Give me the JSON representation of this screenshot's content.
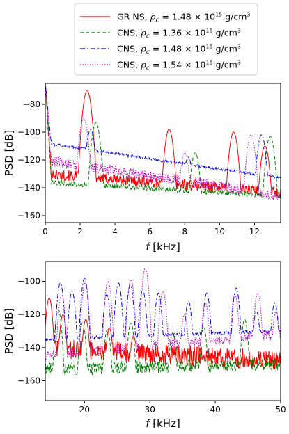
{
  "chart_data": {
    "legend": {
      "placement": "top-center",
      "entries": [
        {
          "label": "GR NS, ",
          "rho_symbol": "ρ",
          "rho_sub": "c",
          "rho_value": " = 1.48 × 10",
          "exponent": "15",
          "unit": " g/cm",
          "unit_exp": "3",
          "color": "#ff0000",
          "dash": "solid"
        },
        {
          "label": "CNS, ",
          "rho_symbol": "ρ",
          "rho_sub": "c",
          "rho_value": " = 1.36 × 10",
          "exponent": "15",
          "unit": " g/cm",
          "unit_exp": "3",
          "color": "#008000",
          "dash": "dashed"
        },
        {
          "label": "CNS, ",
          "rho_symbol": "ρ",
          "rho_sub": "c",
          "rho_value": " = 1.48 × 10",
          "exponent": "15",
          "unit": " g/cm",
          "unit_exp": "3",
          "color": "#0000ff",
          "dash": "dashdot"
        },
        {
          "label": "CNS, ",
          "rho_symbol": "ρ",
          "rho_sub": "c",
          "rho_value": " = 1.54 × 10",
          "exponent": "15",
          "unit": " g/cm",
          "unit_exp": "3",
          "color": "#bf00bf",
          "dash": "dotted"
        }
      ]
    },
    "panels": [
      {
        "type": "line",
        "xlabel_sym": "f",
        "xlabel_unit": " [kHz]",
        "ylabel": "PSD [dB]",
        "xlim": [
          0,
          13.5
        ],
        "ylim": [
          -165,
          -65
        ],
        "xticks": [
          0,
          2,
          4,
          6,
          8,
          10,
          12
        ],
        "yticks": [
          -160,
          -140,
          -120,
          -100,
          -80
        ],
        "series": [
          {
            "name": "GR NS",
            "color": "#ff0000",
            "peaks": [
              [
                2.4,
                -70
              ],
              [
                7.1,
                -98
              ],
              [
                10.8,
                -100
              ],
              [
                12.6,
                -110
              ]
            ],
            "floor_start": -130,
            "floor_end": -143,
            "noise": 4
          },
          {
            "name": "CNS 1.36",
            "color": "#008000",
            "peaks": [
              [
                2.9,
                -93
              ],
              [
                8.6,
                -115
              ],
              [
                12.9,
                -103
              ]
            ],
            "floor_start": -136,
            "floor_end": -146,
            "noise": 2
          },
          {
            "name": "CNS 1.48",
            "color": "#0000ff",
            "peaks": [
              [
                2.6,
                -98
              ],
              [
                8.2,
                -118
              ],
              [
                12.4,
                -102
              ]
            ],
            "floor_start": -108,
            "floor_end": -133,
            "noise": 1
          },
          {
            "name": "CNS 1.54",
            "color": "#bf00bf",
            "peaks": [
              [
                2.2,
                -90
              ],
              [
                8.0,
                -115
              ],
              [
                11.8,
                -102
              ]
            ],
            "floor_start": -120,
            "floor_end": -146,
            "noise": 4
          }
        ]
      },
      {
        "type": "line",
        "xlabel_sym": "f",
        "xlabel_unit": " [kHz]",
        "ylabel": "PSD [dB]",
        "xlim": [
          14,
          50
        ],
        "ylim": [
          -172,
          -88
        ],
        "xticks": [
          20,
          30,
          40,
          50
        ],
        "yticks": [
          -160,
          -140,
          -120,
          -100
        ],
        "series": [
          {
            "name": "GR NS",
            "color": "#ff0000",
            "peaks": [
              [
                14.6,
                -110
              ],
              [
                16.7,
                -120
              ],
              [
                20.2,
                -123
              ],
              [
                23.8,
                -128
              ],
              [
                27.5,
                -133
              ]
            ],
            "floor_start": -140,
            "floor_end": -148,
            "noise": 6
          },
          {
            "name": "CNS 1.36",
            "color": "#008000",
            "peaks": [
              [
                16.0,
                -117
              ],
              [
                19.7,
                -125
              ],
              [
                23.5,
                -129
              ],
              [
                27.1,
                -125
              ],
              [
                33.5,
                -131
              ],
              [
                38.2,
                -127
              ],
              [
                44.5,
                -123
              ]
            ],
            "floor_start": -153,
            "floor_end": -150,
            "noise": 4
          },
          {
            "name": "CNS 1.48",
            "color": "#0000ff",
            "peaks": [
              [
                16.3,
                -101
              ],
              [
                18.1,
                -106
              ],
              [
                20.0,
                -98
              ],
              [
                23.4,
                -108
              ],
              [
                25.2,
                -101
              ],
              [
                27.0,
                -102
              ],
              [
                28.9,
                -105
              ],
              [
                31.3,
                -107
              ],
              [
                35.9,
                -112
              ],
              [
                38.7,
                -107
              ],
              [
                43.2,
                -104
              ],
              [
                46.3,
                -118
              ],
              [
                49.1,
                -113
              ]
            ],
            "floor_start": -135,
            "floor_end": -130,
            "noise": 1
          },
          {
            "name": "CNS 1.54",
            "color": "#bf00bf",
            "peaks": [
              [
                16.5,
                -108
              ],
              [
                20.1,
                -101
              ],
              [
                23.6,
                -100
              ],
              [
                27.1,
                -99
              ],
              [
                29.3,
                -92
              ],
              [
                32.0,
                -106
              ],
              [
                35.3,
                -120
              ],
              [
                38.5,
                -113
              ],
              [
                43.0,
                -108
              ],
              [
                46.5,
                -107
              ],
              [
                49.3,
                -118
              ]
            ],
            "floor_start": -145,
            "floor_end": -132,
            "noise": 3
          }
        ]
      }
    ]
  }
}
